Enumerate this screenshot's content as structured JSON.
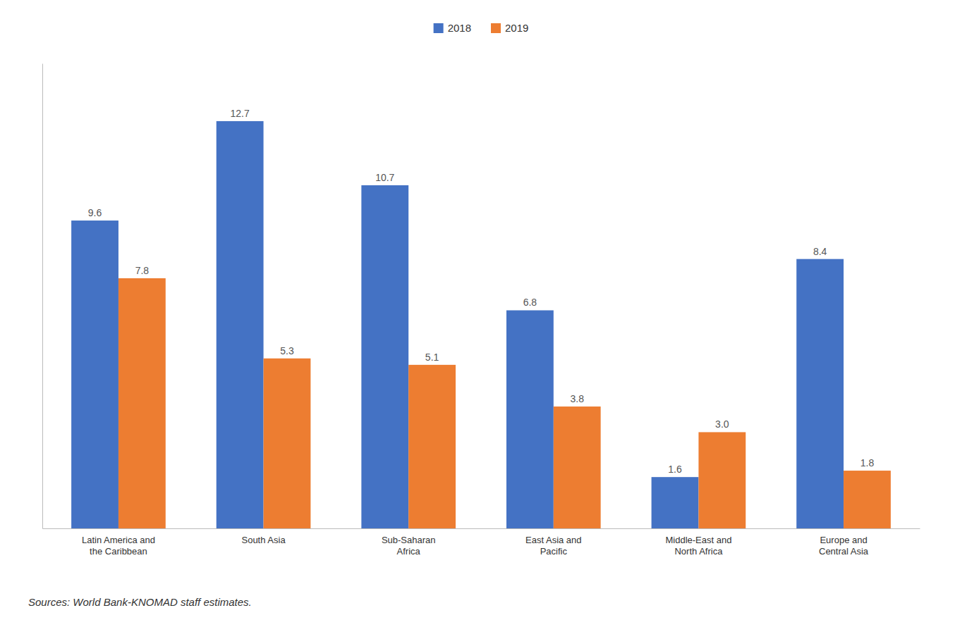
{
  "chart_data": {
    "type": "bar",
    "categories": [
      "Latin America and\nthe Caribbean",
      "South Asia",
      "Sub-Saharan\nAfrica",
      "East Asia and\nPacific",
      "Middle-East and\nNorth Africa",
      "Europe and\nCentral Asia"
    ],
    "series": [
      {
        "name": "2018",
        "color": "#4472C4",
        "values": [
          9.6,
          12.7,
          10.7,
          6.8,
          1.6,
          8.4
        ],
        "value_labels": [
          "9.6",
          "12.7",
          "10.7",
          "6.8",
          "1.6",
          "8.4"
        ]
      },
      {
        "name": "2019",
        "color": "#ED7D31",
        "values": [
          7.8,
          5.3,
          5.1,
          3.8,
          3.0,
          1.8
        ],
        "value_labels": [
          "7.8",
          "5.3",
          "5.1",
          "3.8",
          "3.0",
          "1.8"
        ]
      }
    ],
    "ylim": [
      0,
      14.5
    ],
    "grid": false,
    "legend": "top",
    "data_labels": true,
    "tick_labels": "x",
    "annotations": [
      "Sources: World Bank-KNOMAD staff estimates."
    ]
  }
}
